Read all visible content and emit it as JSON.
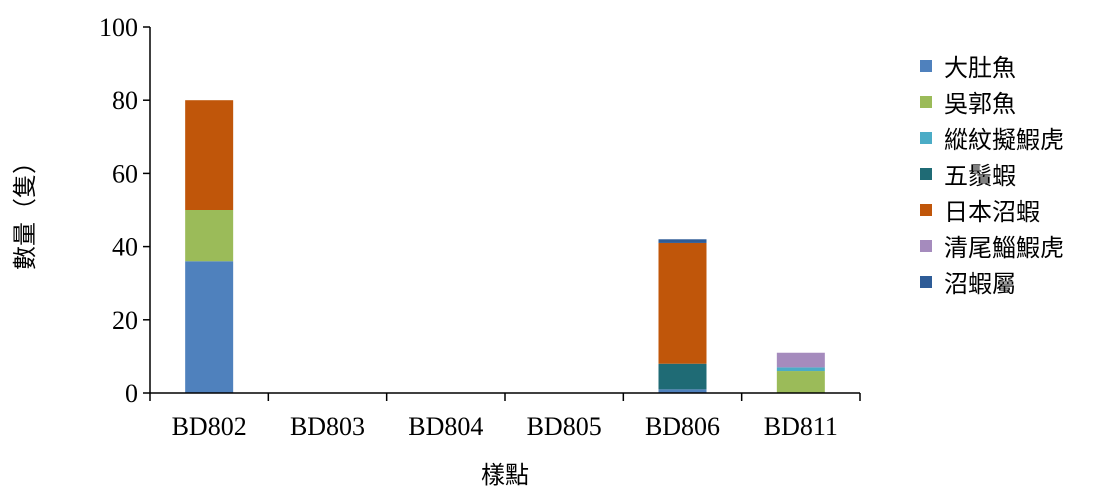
{
  "chart_data": {
    "type": "bar",
    "stacked": true,
    "categories": [
      "BD802",
      "BD803",
      "BD804",
      "BD805",
      "BD806",
      "BD811"
    ],
    "series": [
      {
        "name": "大肚魚",
        "color": "#4f81bd",
        "values": [
          36,
          0,
          0,
          0,
          1,
          0
        ]
      },
      {
        "name": "吳郭魚",
        "color": "#9bbb59",
        "values": [
          14,
          0,
          0,
          0,
          0,
          6
        ]
      },
      {
        "name": "縱紋擬鰕虎",
        "color": "#4bacc6",
        "values": [
          0,
          0,
          0,
          0,
          0,
          1
        ]
      },
      {
        "name": "五鬚蝦",
        "color": "#1f6b75",
        "values": [
          0,
          0,
          0,
          0,
          7,
          0
        ]
      },
      {
        "name": "日本沼蝦",
        "color": "#c0560a",
        "values": [
          30,
          0,
          0,
          0,
          33,
          0
        ]
      },
      {
        "name": "清尾鯔鰕虎",
        "color": "#a58bbd",
        "values": [
          0,
          0,
          0,
          0,
          0,
          4
        ]
      },
      {
        "name": "沼蝦屬",
        "color": "#2e5c97",
        "values": [
          0,
          0,
          0,
          0,
          1,
          0
        ]
      }
    ],
    "title": "",
    "xlabel": "樣點",
    "ylabel": "數量（隻）",
    "ylim": [
      0,
      100
    ],
    "yticks": [
      0,
      20,
      40,
      60,
      80,
      100
    ],
    "grid": false,
    "legend": "right"
  }
}
